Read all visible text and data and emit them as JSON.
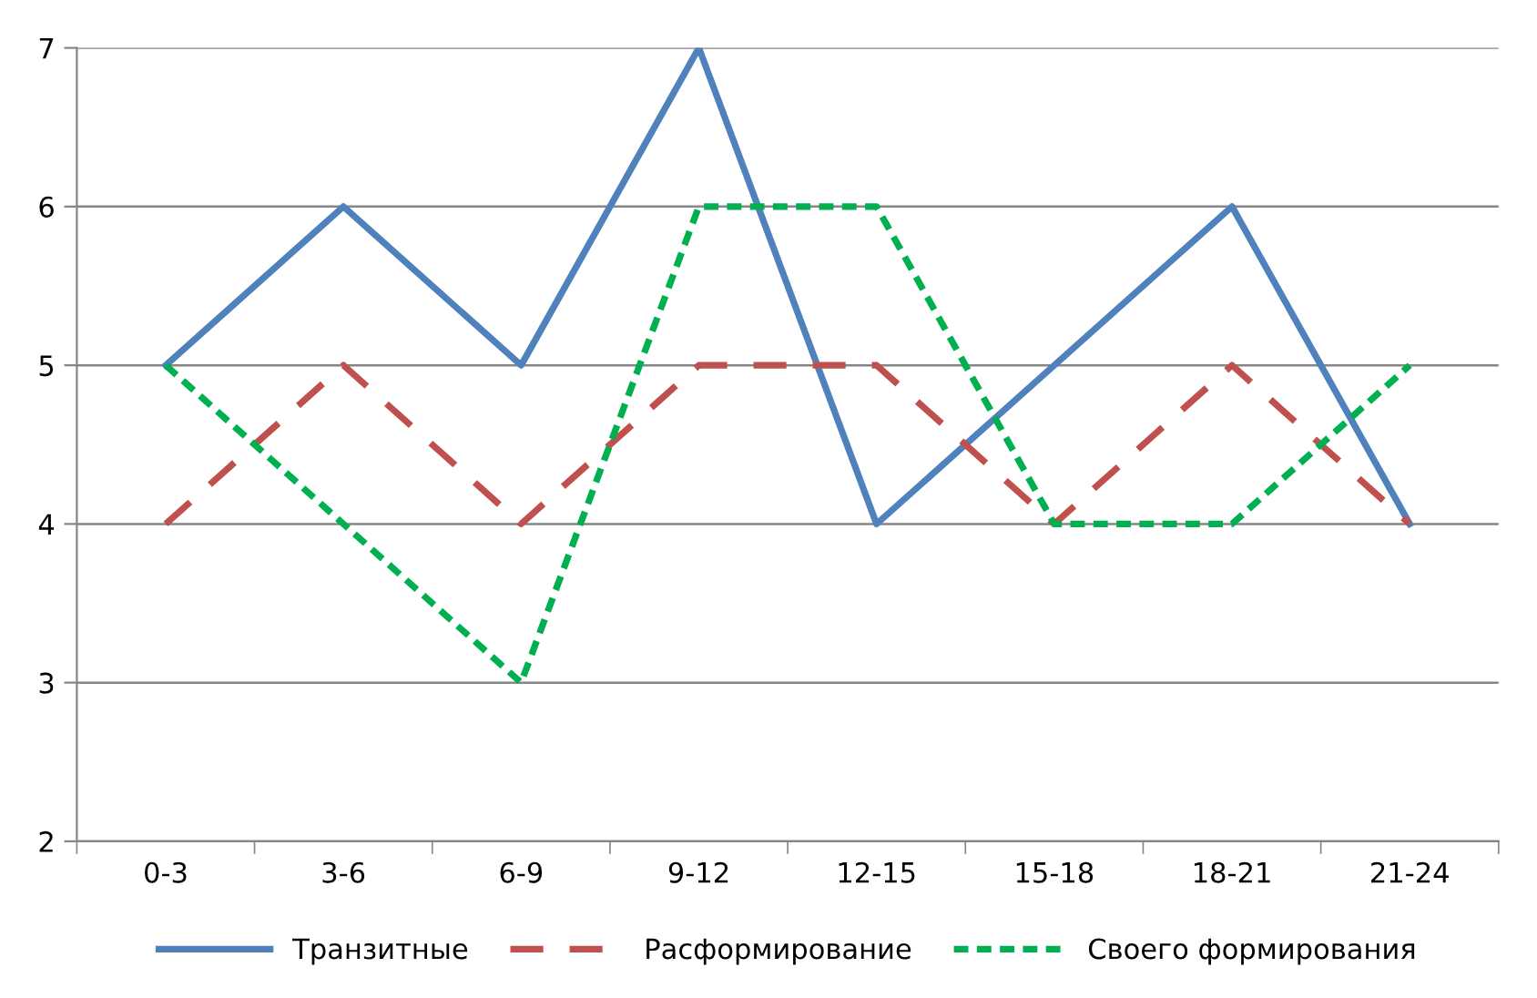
{
  "chart_data": {
    "type": "line",
    "categories": [
      "0-3",
      "3-6",
      "6-9",
      "9-12",
      "12-15",
      "15-18",
      "18-21",
      "21-24"
    ],
    "series": [
      {
        "name": "Транзитные",
        "color": "#4f81bd",
        "line_style": "solid",
        "values": [
          5,
          6,
          5,
          7,
          4,
          5,
          6,
          4
        ]
      },
      {
        "name": "Расформирование",
        "color": "#c0504d",
        "line_style": "dashed",
        "values": [
          4,
          5,
          4,
          5,
          5,
          4,
          5,
          4
        ]
      },
      {
        "name": "Своего формирования",
        "color": "#00b050",
        "line_style": "dotted",
        "values": [
          5,
          4,
          3,
          6,
          6,
          4,
          4,
          5
        ]
      }
    ],
    "ylim": [
      2,
      7
    ],
    "yticks": [
      2,
      3,
      4,
      5,
      6,
      7
    ],
    "grid": "y",
    "legend": "bottom",
    "marker": "none"
  }
}
